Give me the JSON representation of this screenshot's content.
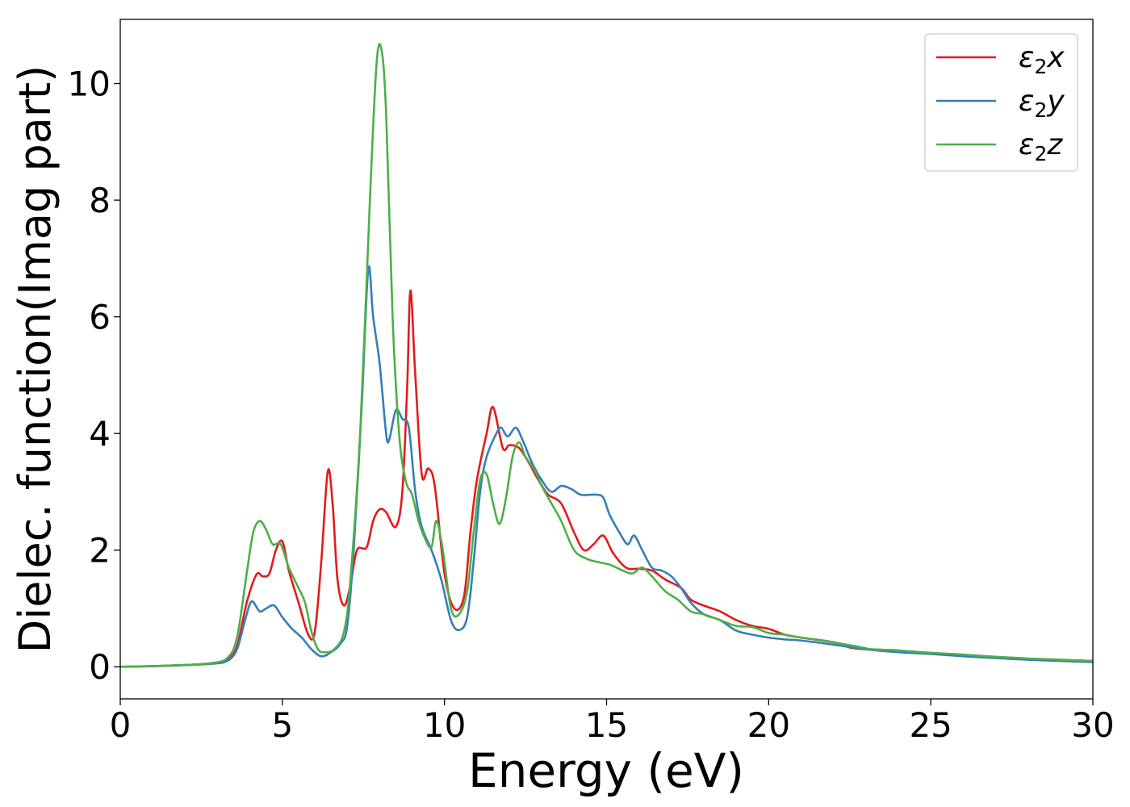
{
  "chart_data": {
    "type": "line",
    "xlabel": "Energy (eV)",
    "ylabel": "Dielec. function(Imag part)",
    "xlim": [
      0,
      30
    ],
    "ylim": [
      -0.55,
      11.1
    ],
    "xticks": [
      0,
      5,
      10,
      15,
      20,
      25,
      30
    ],
    "yticks": [
      0,
      2,
      4,
      6,
      8,
      10
    ],
    "grid": false,
    "legend_position": "top-right",
    "series": [
      {
        "name": "ε₂x",
        "legend_main": "ε",
        "legend_sub": "2",
        "legend_var": "x",
        "color": "#e41a1c",
        "points": [
          [
            0,
            0
          ],
          [
            1,
            0.01
          ],
          [
            2,
            0.03
          ],
          [
            2.8,
            0.06
          ],
          [
            3.3,
            0.13
          ],
          [
            3.6,
            0.35
          ],
          [
            3.9,
            1.1
          ],
          [
            4.2,
            1.58
          ],
          [
            4.4,
            1.55
          ],
          [
            4.6,
            1.6
          ],
          [
            4.8,
            2.0
          ],
          [
            5.0,
            2.15
          ],
          [
            5.2,
            1.65
          ],
          [
            5.5,
            1.1
          ],
          [
            5.8,
            0.55
          ],
          [
            6.0,
            0.6
          ],
          [
            6.2,
            1.8
          ],
          [
            6.4,
            3.35
          ],
          [
            6.55,
            2.8
          ],
          [
            6.7,
            1.5
          ],
          [
            6.9,
            1.05
          ],
          [
            7.1,
            1.4
          ],
          [
            7.3,
            2.0
          ],
          [
            7.6,
            2.05
          ],
          [
            7.8,
            2.5
          ],
          [
            8.0,
            2.7
          ],
          [
            8.2,
            2.65
          ],
          [
            8.5,
            2.4
          ],
          [
            8.7,
            3.0
          ],
          [
            8.85,
            4.8
          ],
          [
            8.95,
            6.45
          ],
          [
            9.1,
            5.0
          ],
          [
            9.3,
            3.3
          ],
          [
            9.5,
            3.4
          ],
          [
            9.7,
            3.1
          ],
          [
            10.0,
            1.6
          ],
          [
            10.3,
            1.0
          ],
          [
            10.6,
            1.2
          ],
          [
            10.8,
            2.3
          ],
          [
            11.0,
            3.2
          ],
          [
            11.3,
            4.0
          ],
          [
            11.5,
            4.45
          ],
          [
            11.8,
            3.75
          ],
          [
            12.0,
            3.8
          ],
          [
            12.3,
            3.75
          ],
          [
            12.6,
            3.5
          ],
          [
            12.9,
            3.2
          ],
          [
            13.2,
            2.95
          ],
          [
            13.6,
            2.8
          ],
          [
            14.0,
            2.3
          ],
          [
            14.3,
            2.0
          ],
          [
            14.6,
            2.1
          ],
          [
            14.9,
            2.25
          ],
          [
            15.2,
            1.95
          ],
          [
            15.6,
            1.7
          ],
          [
            16.0,
            1.68
          ],
          [
            16.4,
            1.65
          ],
          [
            16.8,
            1.5
          ],
          [
            17.3,
            1.35
          ],
          [
            17.6,
            1.15
          ],
          [
            18.0,
            1.05
          ],
          [
            18.5,
            0.95
          ],
          [
            19.0,
            0.8
          ],
          [
            19.5,
            0.7
          ],
          [
            20.0,
            0.65
          ],
          [
            20.5,
            0.55
          ],
          [
            21.0,
            0.5
          ],
          [
            22.0,
            0.42
          ],
          [
            22.5,
            0.33
          ],
          [
            23.0,
            0.3
          ],
          [
            24.0,
            0.28
          ],
          [
            25.0,
            0.22
          ],
          [
            26.0,
            0.2
          ],
          [
            27.0,
            0.17
          ],
          [
            28.0,
            0.14
          ],
          [
            29.0,
            0.12
          ],
          [
            30.0,
            0.1
          ]
        ]
      },
      {
        "name": "ε₂y",
        "legend_main": "ε",
        "legend_sub": "2",
        "legend_var": "y",
        "color": "#377eb8",
        "points": [
          [
            0,
            0
          ],
          [
            1,
            0.01
          ],
          [
            2,
            0.03
          ],
          [
            2.8,
            0.05
          ],
          [
            3.3,
            0.1
          ],
          [
            3.6,
            0.3
          ],
          [
            3.85,
            0.8
          ],
          [
            4.05,
            1.12
          ],
          [
            4.3,
            0.95
          ],
          [
            4.5,
            1.0
          ],
          [
            4.75,
            1.05
          ],
          [
            5.0,
            0.85
          ],
          [
            5.3,
            0.65
          ],
          [
            5.6,
            0.5
          ],
          [
            5.9,
            0.3
          ],
          [
            6.2,
            0.18
          ],
          [
            6.5,
            0.25
          ],
          [
            6.8,
            0.4
          ],
          [
            7.0,
            0.7
          ],
          [
            7.2,
            2.0
          ],
          [
            7.45,
            4.5
          ],
          [
            7.65,
            6.82
          ],
          [
            7.8,
            6.0
          ],
          [
            8.0,
            5.2
          ],
          [
            8.2,
            4.0
          ],
          [
            8.3,
            3.9
          ],
          [
            8.5,
            4.4
          ],
          [
            8.7,
            4.25
          ],
          [
            8.9,
            4.1
          ],
          [
            9.1,
            3.0
          ],
          [
            9.3,
            2.4
          ],
          [
            9.6,
            2.0
          ],
          [
            9.9,
            1.5
          ],
          [
            10.2,
            0.8
          ],
          [
            10.45,
            0.63
          ],
          [
            10.7,
            0.85
          ],
          [
            10.9,
            1.8
          ],
          [
            11.1,
            3.0
          ],
          [
            11.3,
            3.6
          ],
          [
            11.6,
            4.0
          ],
          [
            11.75,
            4.1
          ],
          [
            11.95,
            3.95
          ],
          [
            12.2,
            4.1
          ],
          [
            12.4,
            3.9
          ],
          [
            12.7,
            3.5
          ],
          [
            13.0,
            3.2
          ],
          [
            13.3,
            3.0
          ],
          [
            13.6,
            3.1
          ],
          [
            13.9,
            3.05
          ],
          [
            14.2,
            2.95
          ],
          [
            14.5,
            2.95
          ],
          [
            14.7,
            2.95
          ],
          [
            14.9,
            2.9
          ],
          [
            15.1,
            2.6
          ],
          [
            15.4,
            2.3
          ],
          [
            15.65,
            2.1
          ],
          [
            15.85,
            2.25
          ],
          [
            16.1,
            2.0
          ],
          [
            16.4,
            1.7
          ],
          [
            16.7,
            1.65
          ],
          [
            17.0,
            1.55
          ],
          [
            17.3,
            1.35
          ],
          [
            17.6,
            1.1
          ],
          [
            18.0,
            0.9
          ],
          [
            18.5,
            0.8
          ],
          [
            19.0,
            0.62
          ],
          [
            19.5,
            0.55
          ],
          [
            20.0,
            0.5
          ],
          [
            20.5,
            0.47
          ],
          [
            21.0,
            0.45
          ],
          [
            22.0,
            0.38
          ],
          [
            23.0,
            0.3
          ],
          [
            24.0,
            0.25
          ],
          [
            25.0,
            0.22
          ],
          [
            26.0,
            0.18
          ],
          [
            27.0,
            0.15
          ],
          [
            28.0,
            0.12
          ],
          [
            29.0,
            0.1
          ],
          [
            30.0,
            0.08
          ]
        ]
      },
      {
        "name": "ε₂z",
        "legend_main": "ε",
        "legend_sub": "2",
        "legend_var": "z",
        "color": "#4daf4a",
        "points": [
          [
            0,
            0
          ],
          [
            1,
            0.01
          ],
          [
            2,
            0.03
          ],
          [
            2.8,
            0.06
          ],
          [
            3.3,
            0.15
          ],
          [
            3.6,
            0.5
          ],
          [
            3.9,
            1.6
          ],
          [
            4.1,
            2.3
          ],
          [
            4.3,
            2.5
          ],
          [
            4.5,
            2.35
          ],
          [
            4.7,
            2.1
          ],
          [
            4.95,
            2.1
          ],
          [
            5.2,
            1.7
          ],
          [
            5.5,
            1.35
          ],
          [
            5.7,
            1.1
          ],
          [
            5.9,
            0.6
          ],
          [
            6.1,
            0.3
          ],
          [
            6.3,
            0.25
          ],
          [
            6.6,
            0.3
          ],
          [
            6.9,
            0.6
          ],
          [
            7.1,
            1.5
          ],
          [
            7.4,
            4.0
          ],
          [
            7.7,
            8.0
          ],
          [
            7.9,
            10.3
          ],
          [
            8.05,
            10.6
          ],
          [
            8.2,
            9.5
          ],
          [
            8.4,
            6.0
          ],
          [
            8.6,
            4.0
          ],
          [
            8.8,
            3.2
          ],
          [
            9.0,
            2.95
          ],
          [
            9.2,
            2.5
          ],
          [
            9.4,
            2.2
          ],
          [
            9.6,
            2.05
          ],
          [
            9.75,
            2.5
          ],
          [
            9.95,
            2.0
          ],
          [
            10.2,
            1.0
          ],
          [
            10.45,
            0.9
          ],
          [
            10.7,
            1.3
          ],
          [
            10.9,
            2.3
          ],
          [
            11.1,
            3.2
          ],
          [
            11.3,
            3.3
          ],
          [
            11.5,
            2.8
          ],
          [
            11.7,
            2.45
          ],
          [
            11.9,
            2.9
          ],
          [
            12.1,
            3.6
          ],
          [
            12.3,
            3.85
          ],
          [
            12.5,
            3.6
          ],
          [
            12.8,
            3.35
          ],
          [
            13.0,
            3.1
          ],
          [
            13.3,
            2.8
          ],
          [
            13.6,
            2.5
          ],
          [
            14.0,
            2.0
          ],
          [
            14.4,
            1.85
          ],
          [
            14.7,
            1.8
          ],
          [
            15.1,
            1.75
          ],
          [
            15.5,
            1.65
          ],
          [
            15.8,
            1.6
          ],
          [
            16.1,
            1.7
          ],
          [
            16.4,
            1.55
          ],
          [
            16.8,
            1.3
          ],
          [
            17.2,
            1.15
          ],
          [
            17.6,
            0.95
          ],
          [
            18.0,
            0.9
          ],
          [
            18.5,
            0.8
          ],
          [
            19.0,
            0.7
          ],
          [
            19.5,
            0.68
          ],
          [
            20.0,
            0.58
          ],
          [
            20.5,
            0.55
          ],
          [
            21.0,
            0.5
          ],
          [
            21.7,
            0.45
          ],
          [
            22.2,
            0.4
          ],
          [
            22.7,
            0.35
          ],
          [
            23.2,
            0.3
          ],
          [
            24.0,
            0.28
          ],
          [
            25.0,
            0.24
          ],
          [
            26.0,
            0.21
          ],
          [
            27.0,
            0.17
          ],
          [
            28.0,
            0.14
          ],
          [
            29.0,
            0.12
          ],
          [
            30.0,
            0.1
          ]
        ]
      }
    ]
  }
}
